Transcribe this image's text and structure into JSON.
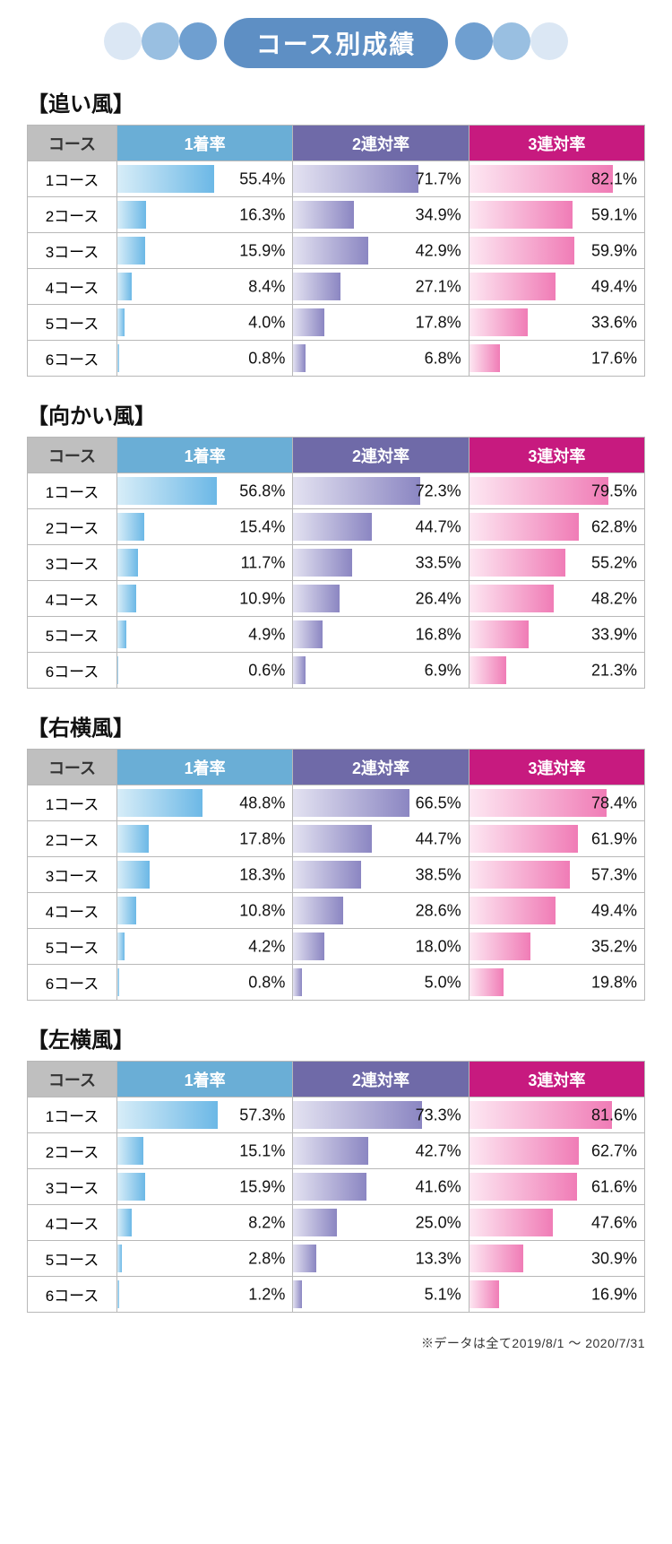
{
  "title": "コース別成績",
  "title_pill_bg": "#5e8fc4",
  "dots_left": [
    "#dbe7f4",
    "#99bfe1",
    "#6f9fd0"
  ],
  "dots_right": [
    "#6f9fd0",
    "#99bfe1",
    "#dbe7f4"
  ],
  "columns": {
    "course": "コース",
    "c1": "1着率",
    "c2": "2連対率",
    "c3": "3連対率"
  },
  "header_colors": {
    "course_bg": "#bfbfbf",
    "c1": "#6aaed6",
    "c2": "#6f6aa8",
    "c3": "#c71a7f"
  },
  "bar_gradients": {
    "c1": {
      "from": "#d7edf8",
      "to": "#6cb8e6"
    },
    "c2": {
      "from": "#e3e2f1",
      "to": "#8b86c2"
    },
    "c3": {
      "from": "#fde7f2",
      "to": "#f07cb6"
    }
  },
  "bar_max_percent": 100,
  "row_labels": [
    "1コース",
    "2コース",
    "3コース",
    "4コース",
    "5コース",
    "6コース"
  ],
  "sections": [
    {
      "title": "【追い風】",
      "rows": [
        {
          "c1": 55.4,
          "c2": 71.7,
          "c3": 82.1
        },
        {
          "c1": 16.3,
          "c2": 34.9,
          "c3": 59.1
        },
        {
          "c1": 15.9,
          "c2": 42.9,
          "c3": 59.9
        },
        {
          "c1": 8.4,
          "c2": 27.1,
          "c3": 49.4
        },
        {
          "c1": 4.0,
          "c2": 17.8,
          "c3": 33.6
        },
        {
          "c1": 0.8,
          "c2": 6.8,
          "c3": 17.6
        }
      ]
    },
    {
      "title": "【向かい風】",
      "rows": [
        {
          "c1": 56.8,
          "c2": 72.3,
          "c3": 79.5
        },
        {
          "c1": 15.4,
          "c2": 44.7,
          "c3": 62.8
        },
        {
          "c1": 11.7,
          "c2": 33.5,
          "c3": 55.2
        },
        {
          "c1": 10.9,
          "c2": 26.4,
          "c3": 48.2
        },
        {
          "c1": 4.9,
          "c2": 16.8,
          "c3": 33.9
        },
        {
          "c1": 0.6,
          "c2": 6.9,
          "c3": 21.3
        }
      ]
    },
    {
      "title": "【右横風】",
      "rows": [
        {
          "c1": 48.8,
          "c2": 66.5,
          "c3": 78.4
        },
        {
          "c1": 17.8,
          "c2": 44.7,
          "c3": 61.9
        },
        {
          "c1": 18.3,
          "c2": 38.5,
          "c3": 57.3
        },
        {
          "c1": 10.8,
          "c2": 28.6,
          "c3": 49.4
        },
        {
          "c1": 4.2,
          "c2": 18.0,
          "c3": 35.2
        },
        {
          "c1": 0.8,
          "c2": 5.0,
          "c3": 19.8
        }
      ]
    },
    {
      "title": "【左横風】",
      "rows": [
        {
          "c1": 57.3,
          "c2": 73.3,
          "c3": 81.6
        },
        {
          "c1": 15.1,
          "c2": 42.7,
          "c3": 62.7
        },
        {
          "c1": 15.9,
          "c2": 41.6,
          "c3": 61.6
        },
        {
          "c1": 8.2,
          "c2": 25.0,
          "c3": 47.6
        },
        {
          "c1": 2.8,
          "c2": 13.3,
          "c3": 30.9
        },
        {
          "c1": 1.2,
          "c2": 5.1,
          "c3": 16.9
        }
      ]
    }
  ],
  "footnote": "※データは全て2019/8/1 ～ 2020/7/31"
}
